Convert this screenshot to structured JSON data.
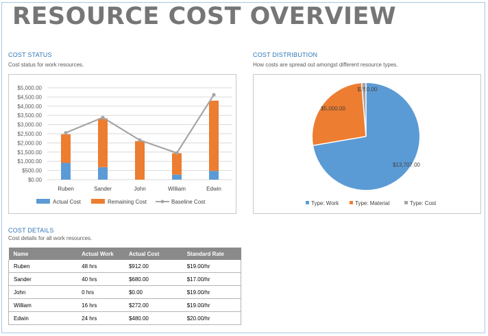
{
  "title": "RESOURCE COST OVERVIEW",
  "cost_status": {
    "heading": "COST STATUS",
    "subtitle": "Cost status for work resources."
  },
  "cost_distribution": {
    "heading": "COST DISTRIBUTION",
    "subtitle": "How costs are spread out amongst different resource types."
  },
  "cost_details": {
    "heading": "COST DETAILS",
    "subtitle": "Cost details for all work resources.",
    "columns": [
      "Name",
      "Actual Work",
      "Actual Cost",
      "Standard Rate"
    ],
    "rows": [
      [
        "Ruben",
        "48 hrs",
        "$912.00",
        "$19.00/hr"
      ],
      [
        "Sander",
        "40 hrs",
        "$680.00",
        "$17.00/hr"
      ],
      [
        "John",
        "0 hrs",
        "$0.00",
        "$19.00/hr"
      ],
      [
        "William",
        "16 hrs",
        "$272.00",
        "$19.00/hr"
      ],
      [
        "Edwin",
        "24 hrs",
        "$480.00",
        "$20.00/hr"
      ]
    ]
  },
  "colors": {
    "actual": "#5b9bd5",
    "remaining": "#ed7d31",
    "baseline": "#a5a5a5",
    "title_gray": "#767676",
    "heading_blue": "#2e75b6"
  },
  "chart_data": [
    {
      "type": "bar",
      "stacked": true,
      "categories": [
        "Ruben",
        "Sander",
        "John",
        "William",
        "Edwin"
      ],
      "series": [
        {
          "name": "Actual Cost",
          "values": [
            912,
            680,
            0,
            272,
            480
          ],
          "color": "#5b9bd5"
        },
        {
          "name": "Remaining Cost",
          "values": [
            1558,
            2660,
            2100,
            1168,
            3820
          ],
          "color": "#ed7d31"
        },
        {
          "name": "Baseline Cost",
          "kind": "line",
          "values": [
            2550,
            3380,
            2150,
            1450,
            4620
          ],
          "color": "#a5a5a5"
        }
      ],
      "ylim": [
        0,
        5000
      ],
      "yticks": [
        "$0.00",
        "$500.00",
        "$1,000.00",
        "$1,500.00",
        "$2,000.00",
        "$2,500.00",
        "$3,000.00",
        "$3,500.00",
        "$4,000.00",
        "$4,500.00",
        "$5,000.00"
      ],
      "legend": [
        "Actual Cost",
        "Remaining Cost",
        "Baseline Cost"
      ],
      "legend_position": "bottom",
      "grid": true
    },
    {
      "type": "pie",
      "labels": [
        "Type: Work",
        "Type: Material",
        "Type: Cost"
      ],
      "values": [
        13707,
        5000,
        250
      ],
      "data_labels": [
        "$13,707.00",
        "$5,000.00",
        "$250.00"
      ],
      "colors": [
        "#5b9bd5",
        "#ed7d31",
        "#a5a5a5"
      ],
      "legend_position": "bottom"
    }
  ]
}
